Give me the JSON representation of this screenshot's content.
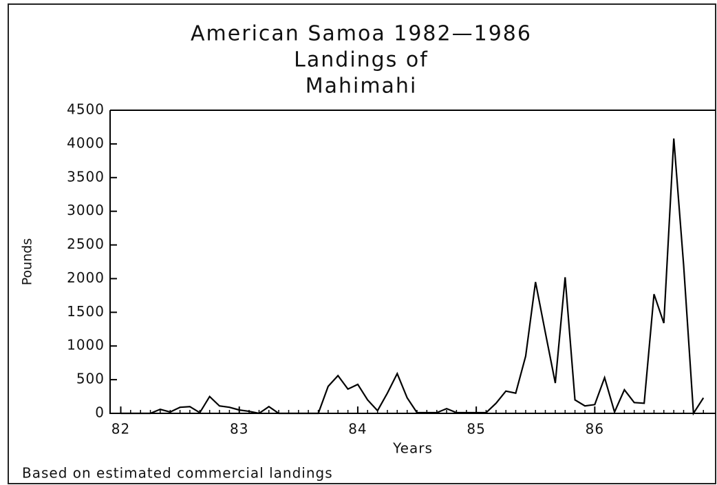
{
  "chart_data": {
    "type": "line",
    "title": "American Samoa 1982—1986",
    "subtitle": [
      "Landings of",
      "Mahimahi"
    ],
    "xlabel": "Years",
    "ylabel": "Pounds",
    "note": "Based on estimated commercial landings",
    "x": [
      82.0,
      82.083,
      82.167,
      82.25,
      82.333,
      82.417,
      82.5,
      82.583,
      82.667,
      82.75,
      82.833,
      82.917,
      83.0,
      83.083,
      83.167,
      83.25,
      83.333,
      83.417,
      83.5,
      83.583,
      83.667,
      83.75,
      83.833,
      83.917,
      84.0,
      84.083,
      84.167,
      84.25,
      84.333,
      84.417,
      84.5,
      84.583,
      84.667,
      84.75,
      84.833,
      84.917,
      85.0,
      85.083,
      85.167,
      85.25,
      85.333,
      85.417,
      85.5,
      85.583,
      85.667,
      85.75,
      85.833,
      85.917,
      86.0,
      86.083,
      86.167,
      86.25,
      86.333,
      86.417,
      86.5,
      86.583,
      86.667,
      86.75,
      86.833,
      86.917
    ],
    "values": [
      0,
      0,
      0,
      0,
      60,
      20,
      90,
      100,
      10,
      250,
      110,
      90,
      50,
      30,
      0,
      100,
      0,
      0,
      0,
      0,
      0,
      400,
      560,
      360,
      430,
      200,
      40,
      300,
      590,
      230,
      10,
      10,
      10,
      70,
      10,
      10,
      10,
      10,
      150,
      330,
      300,
      850,
      1950,
      1200,
      450,
      2020,
      200,
      110,
      130,
      530,
      20,
      350,
      160,
      150,
      1770,
      1340,
      4080,
      2200,
      0,
      230
    ],
    "color": "#000000",
    "xlim": [
      81.91,
      87.02
    ],
    "xticks": [
      82,
      83,
      84,
      85,
      86
    ],
    "ylim": [
      0,
      4500
    ],
    "yticks": [
      0,
      500,
      1000,
      1500,
      2000,
      2500,
      3000,
      3500,
      4000,
      4500
    ],
    "grid": false
  }
}
